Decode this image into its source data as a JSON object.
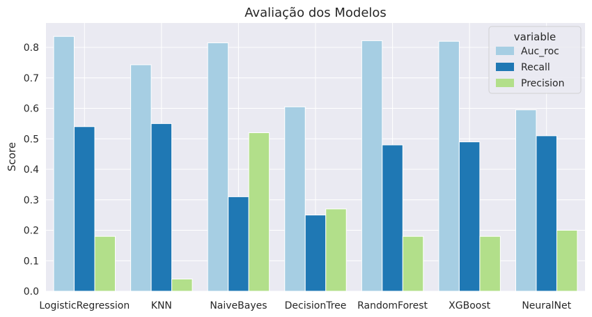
{
  "chart_data": {
    "type": "bar",
    "title": "Avaliação dos Modelos",
    "xlabel": "",
    "ylabel": "Score",
    "ylim": [
      0,
      0.88
    ],
    "yticks": [
      0.0,
      0.1,
      0.2,
      0.3,
      0.4,
      0.5,
      0.6,
      0.7,
      0.8
    ],
    "grid": true,
    "legend": {
      "title": "variable",
      "placement": "top-right"
    },
    "categories": [
      "LogisticRegression",
      "KNN",
      "NaiveBayes",
      "DecisionTree",
      "RandomForest",
      "XGBoost",
      "NeuralNet"
    ],
    "series": [
      {
        "name": "Auc_roc",
        "color": "#a6cee3",
        "values": [
          0.836,
          0.743,
          0.815,
          0.605,
          0.822,
          0.82,
          0.595
        ]
      },
      {
        "name": "Recall",
        "color": "#1f78b4",
        "values": [
          0.54,
          0.55,
          0.31,
          0.25,
          0.48,
          0.49,
          0.51
        ]
      },
      {
        "name": "Precision",
        "color": "#b2df8a",
        "values": [
          0.18,
          0.04,
          0.52,
          0.27,
          0.18,
          0.18,
          0.2
        ]
      }
    ],
    "colors": {
      "plot_bg": "#eaeaf2",
      "grid": "#ffffff"
    }
  }
}
